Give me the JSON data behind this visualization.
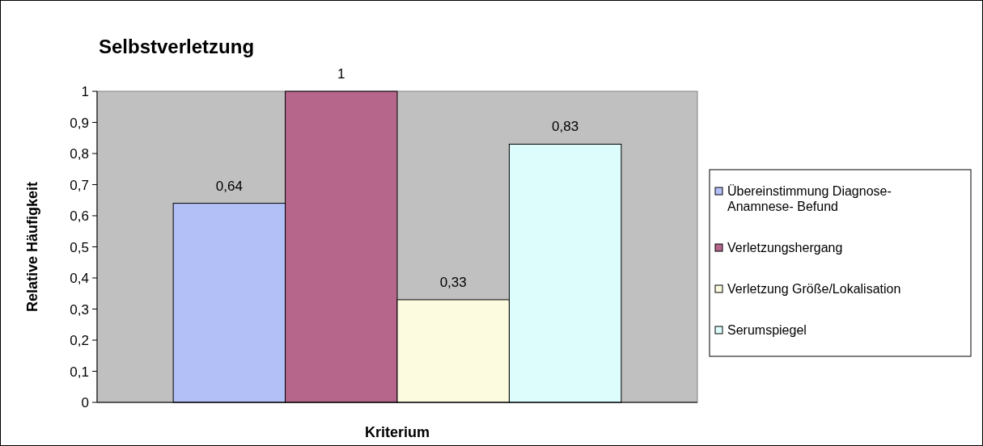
{
  "chart_data": {
    "type": "bar",
    "title": "Selbstverletzung",
    "xlabel": "Kriterium",
    "ylabel": "Relative Häufigkeit",
    "categories": [
      null
    ],
    "series": [
      {
        "name": "Übereinstimmung Diagnose- Anamnese- Befund",
        "color": "#b3c0f8",
        "values": [
          0.64
        ],
        "value_labels": [
          "0,64"
        ]
      },
      {
        "name": "Verletzungshergang",
        "color": "#b5668a",
        "values": [
          1
        ],
        "value_labels": [
          "1"
        ]
      },
      {
        "name": "Verletzung Größe/Lokalisation",
        "color": "#fcfadf",
        "values": [
          0.33
        ],
        "value_labels": [
          "0,33"
        ]
      },
      {
        "name": "Serumspiegel",
        "color": "#ddfdfd",
        "values": [
          0.83
        ],
        "value_labels": [
          "0,83"
        ]
      }
    ],
    "ylim": [
      0,
      1
    ],
    "yticks": [
      0,
      {
        "value": 0.1,
        "label": "0,1"
      },
      {
        "value": 0.2,
        "label": "0,2"
      },
      {
        "value": 0.3,
        "label": "0,3"
      },
      {
        "value": 0.4,
        "label": "0,4"
      },
      {
        "value": 0.5,
        "label": "0,5"
      },
      {
        "value": 0.6,
        "label": "0,6"
      },
      {
        "value": 0.7,
        "label": "0,7"
      },
      {
        "value": 0.8,
        "label": "0,8"
      },
      {
        "value": 0.9,
        "label": "0,9"
      },
      1
    ],
    "grid": false,
    "legend": "right"
  }
}
